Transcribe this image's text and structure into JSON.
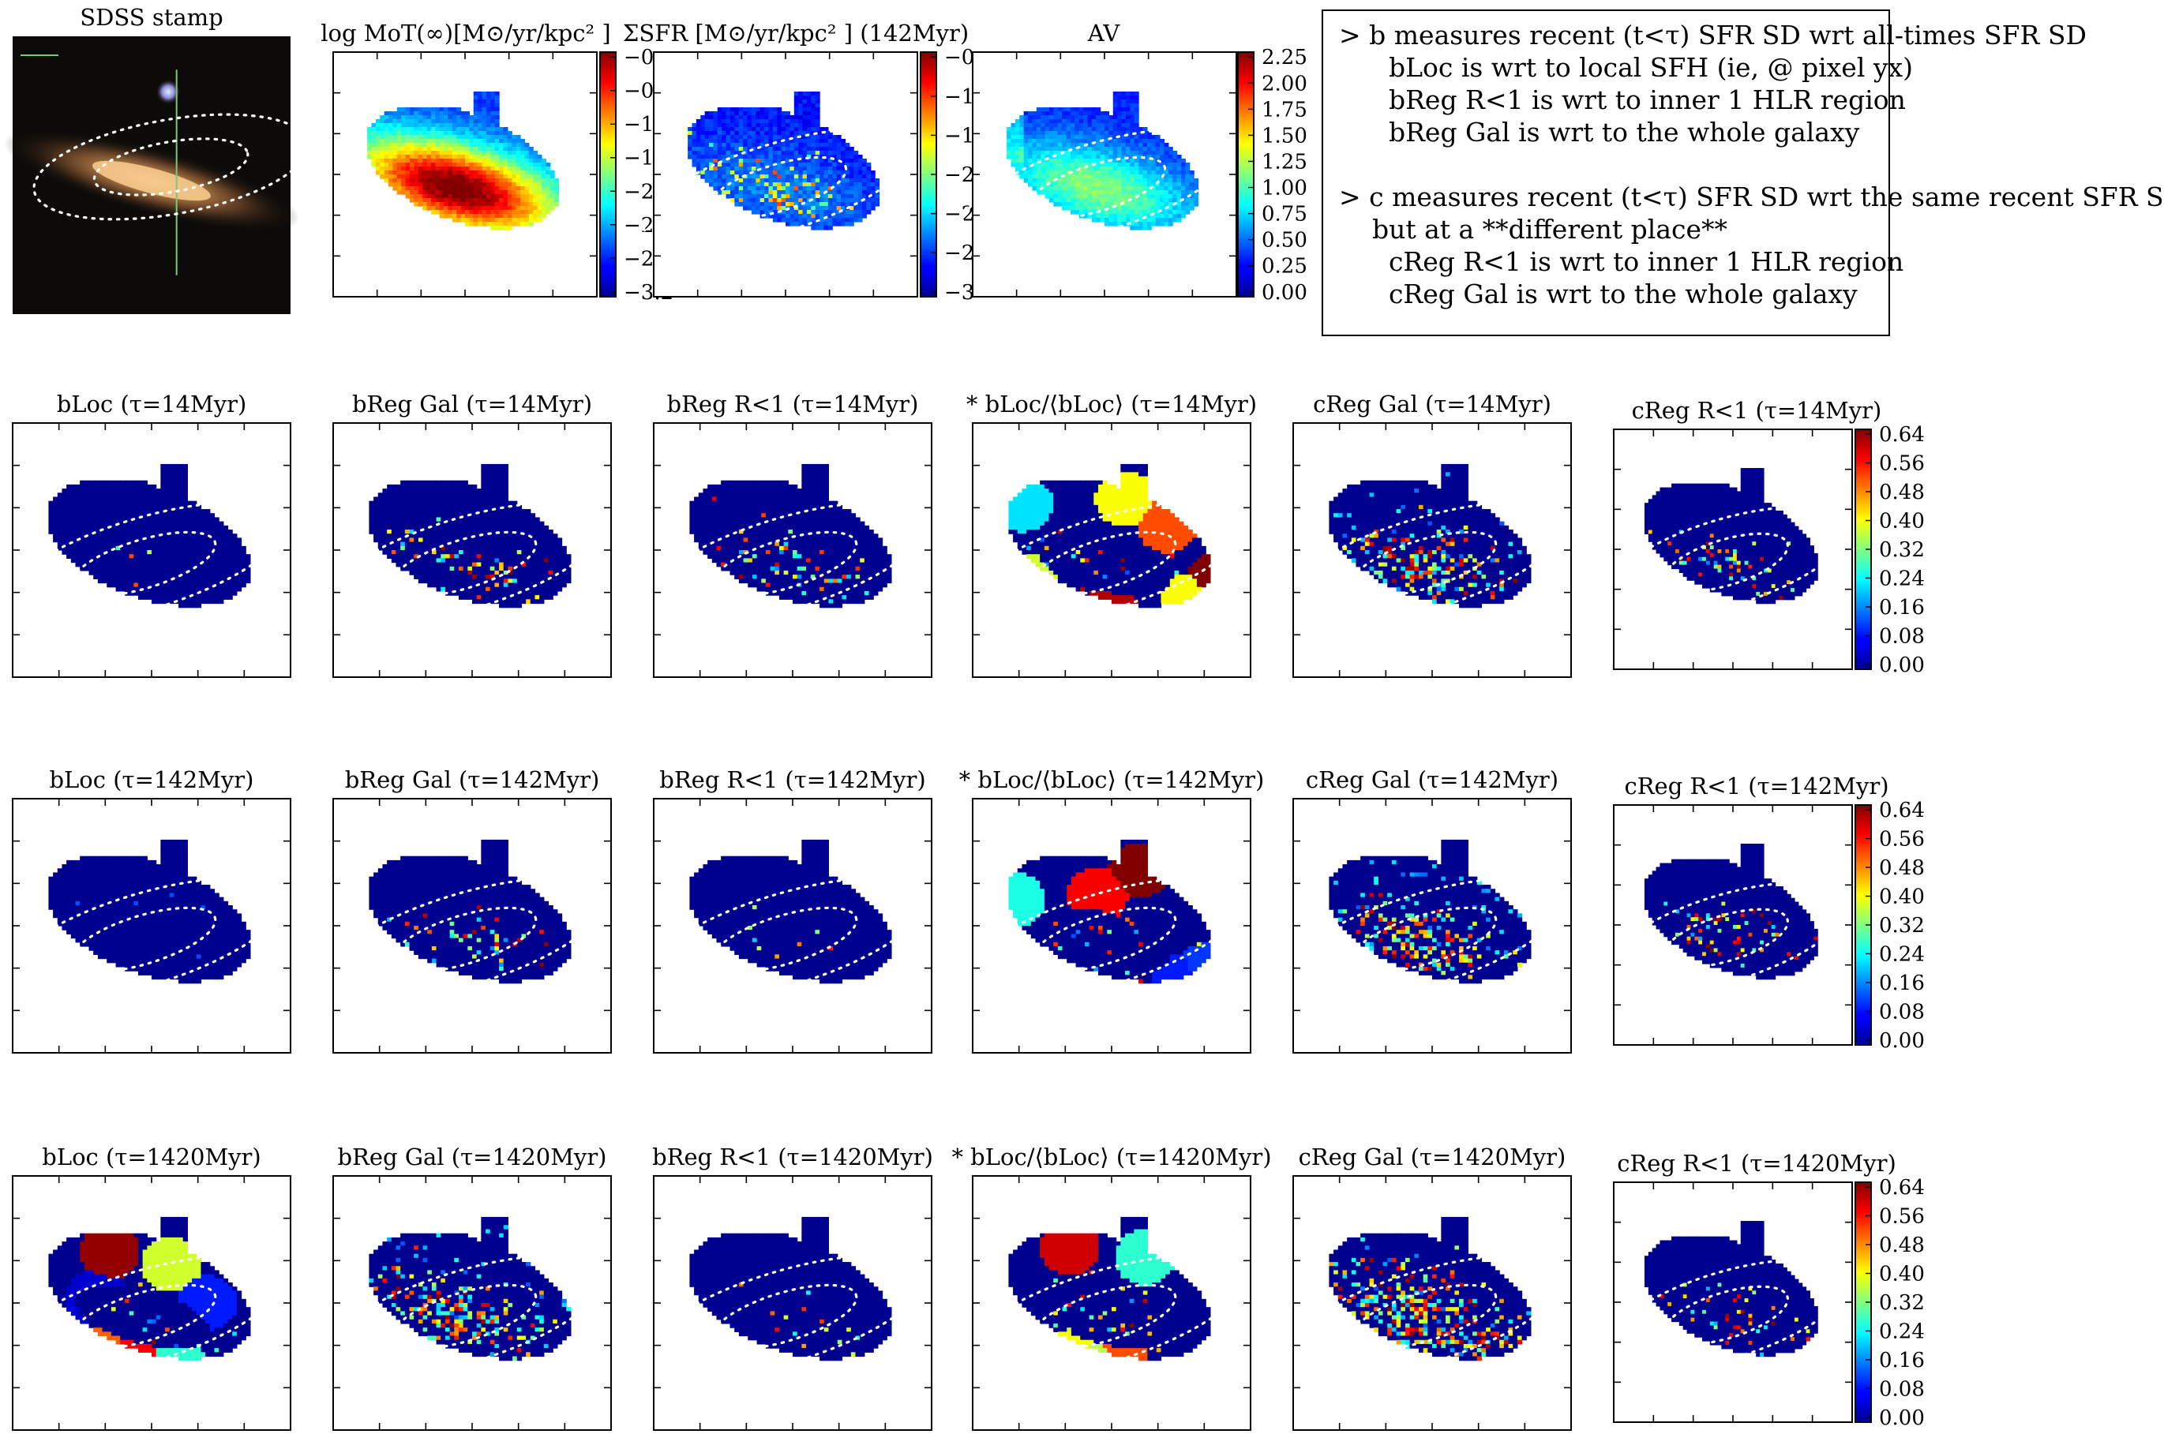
{
  "figure_title_text": {
    "stamp": "SDSS stamp",
    "mot": "log MoT(∞)[M⊙/yr/kpc² ]",
    "sfr": "ΣSFR [M⊙/yr/kpc² ] (142Myr)",
    "av": "AV"
  },
  "notes": [
    "> b measures recent (t<τ) SFR SD wrt all-times SFR SD",
    "      bLoc is wrt to local SFH (ie, @ pixel yx)",
    "      bReg R<1 is wrt to inner 1 HLR region",
    "      bReg Gal is wrt to the whole galaxy",
    "",
    "> c measures recent (t<τ) SFR SD wrt the same recent SFR S",
    "    but at a **different place**",
    "      cReg R<1 is wrt to inner 1 HLR region",
    "      cReg Gal is wrt to the whole galaxy"
  ],
  "colors": {
    "background_map": "#00008f",
    "colormap": "jet",
    "ellipse": "#ffffff",
    "stamp_bg": "#0d0b09"
  },
  "chart_data": [
    {
      "type": "heatmap",
      "title": "log MoT(∞)[M⊙/yr/kpc² ]",
      "colorbar_ticks": [
        "−0",
        "−0",
        "−1",
        "−1",
        "−2",
        "−2",
        "−2",
        "−3.2"
      ],
      "range": [
        -3.2,
        -0.2
      ],
      "pattern": "smooth_disk"
    },
    {
      "type": "heatmap",
      "title": "ΣSFR [M⊙/yr/kpc² ] (142Myr)",
      "colorbar_ticks": [
        "−0",
        "−1",
        "−1",
        "−2",
        "−2",
        "−2",
        "−3"
      ],
      "pattern": "noisy_disk"
    },
    {
      "type": "heatmap",
      "title": "AV",
      "colorbar_ticks": [
        "2.25",
        "2.00",
        "1.75",
        "1.50",
        "1.25",
        "1.00",
        "0.75",
        "0.50",
        "0.25",
        "0.00"
      ],
      "range": [
        0.0,
        2.3
      ],
      "pattern": "smooth_av"
    },
    {
      "type": "heatmap",
      "grid_rows": [
        "τ=14Myr",
        "τ=142Myr",
        "τ=1420Myr"
      ],
      "panel_names": [
        "bLoc",
        "bReg Gal",
        "bReg R<1",
        "* bLoc/⟨bLoc⟩",
        "cReg Gal",
        "cReg R<1"
      ],
      "tau_labels": [
        "(τ=14Myr)",
        "(τ=142Myr)",
        "(τ=1420Myr)"
      ],
      "colorbar_ticks": [
        "0.64",
        "0.56",
        "0.48",
        "0.40",
        "0.32",
        "0.24",
        "0.16",
        "0.08",
        "0.00"
      ],
      "range": [
        0.0,
        0.68
      ],
      "patterns": [
        [
          "sparse1",
          "medium",
          "medium",
          "blobs14",
          "dense",
          "medium"
        ],
        [
          "sparse0",
          "medium",
          "sparse1",
          "blobs142",
          "dense",
          "medium"
        ],
        [
          "blobs_loc",
          "dense",
          "sparse1",
          "blobs1420",
          "dense2",
          "medium"
        ]
      ]
    }
  ]
}
